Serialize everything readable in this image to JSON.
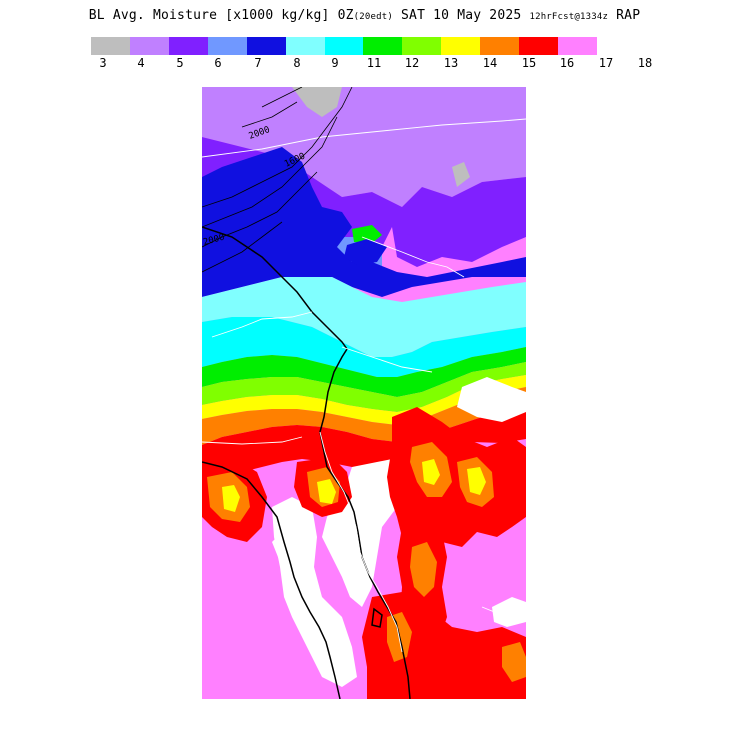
{
  "header": {
    "title_main": "BL Avg. Moisture [x1000 kg/kg] 0Z",
    "title_small_1": "(20edt)",
    "title_date": " SAT 10 May 2025 ",
    "title_small_2": "12hrFcst@1334z",
    "title_model": " RAP"
  },
  "legend": {
    "ticks": [
      "3",
      "4",
      "5",
      "6",
      "7",
      "8",
      "9",
      "11",
      "12",
      "13",
      "14",
      "15",
      "16",
      "17",
      "18"
    ],
    "colors": [
      "#bebebe",
      "#c080ff",
      "#8020ff",
      "#7098ff",
      "#1010e0",
      "#80ffff",
      "#00ffff",
      "#00ee00",
      "#80ff00",
      "#ffff00",
      "#ff8000",
      "#ff0000",
      "#ff80ff"
    ]
  },
  "map": {
    "contour_labels": [
      "2000",
      "1600",
      "2000"
    ],
    "colors": {
      "gray": "#bebebe",
      "lavender": "#c080ff",
      "purple": "#8020ff",
      "lightblue": "#7098ff",
      "blue": "#1010e0",
      "paleCyan": "#80ffff",
      "cyan": "#00ffff",
      "green": "#00ee00",
      "lime": "#80ff00",
      "yellow": "#ffff00",
      "orange": "#ff8000",
      "red": "#ff0000",
      "pink": "#ff80ff",
      "white": "#ffffff"
    }
  }
}
